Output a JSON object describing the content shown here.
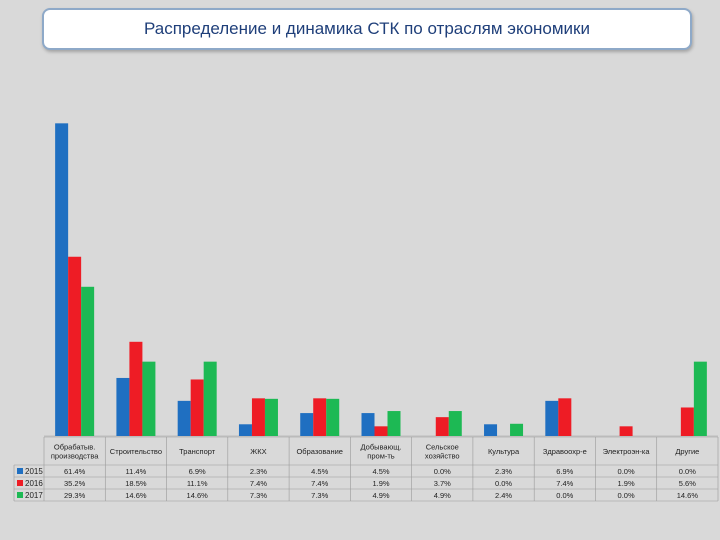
{
  "title": "Распределение и динамика СТК по отраслям экономики",
  "chart_data": {
    "type": "bar",
    "categories": [
      [
        "Обрабатыв.",
        "производства"
      ],
      [
        "Строительство"
      ],
      [
        "Транспорт"
      ],
      [
        "ЖКХ"
      ],
      [
        "Образование"
      ],
      [
        "Добывающ.",
        "пром-ть"
      ],
      [
        "Сельское",
        "хозяйство"
      ],
      [
        "Культура"
      ],
      [
        "Здравоохр-е"
      ],
      [
        "Электроэн-ка"
      ],
      [
        "Другие"
      ]
    ],
    "series": [
      {
        "name": "2015",
        "color": "#1f6fc1",
        "values": [
          61.4,
          11.4,
          6.9,
          2.3,
          4.5,
          4.5,
          0.0,
          2.3,
          6.9,
          0.0,
          0.0
        ],
        "labels": [
          "61.4%",
          "11.4%",
          "6.9%",
          "2.3%",
          "4.5%",
          "4.5%",
          "0.0%",
          "2.3%",
          "6.9%",
          "0.0%",
          "0.0%"
        ]
      },
      {
        "name": "2016",
        "color": "#ee1c25",
        "values": [
          35.2,
          18.5,
          11.1,
          7.4,
          7.4,
          1.9,
          3.7,
          0.0,
          7.4,
          1.9,
          5.6
        ],
        "labels": [
          "35.2%",
          "18.5%",
          "11.1%",
          "7.4%",
          "7.4%",
          "1.9%",
          "3.7%",
          "0.0%",
          "7.4%",
          "1.9%",
          "5.6%"
        ]
      },
      {
        "name": "2017",
        "color": "#1db954",
        "values": [
          29.3,
          14.6,
          14.6,
          7.3,
          7.3,
          4.9,
          4.9,
          2.4,
          0.0,
          0.0,
          14.6
        ],
        "labels": [
          "29.3%",
          "14.6%",
          "14.6%",
          "7.3%",
          "7.3%",
          "4.9%",
          "4.9%",
          "2.4%",
          "0.0%",
          "0.0%",
          "14.6%"
        ]
      }
    ],
    "ylim": [
      0,
      65
    ],
    "grid": false,
    "legend": "data-table-left"
  }
}
